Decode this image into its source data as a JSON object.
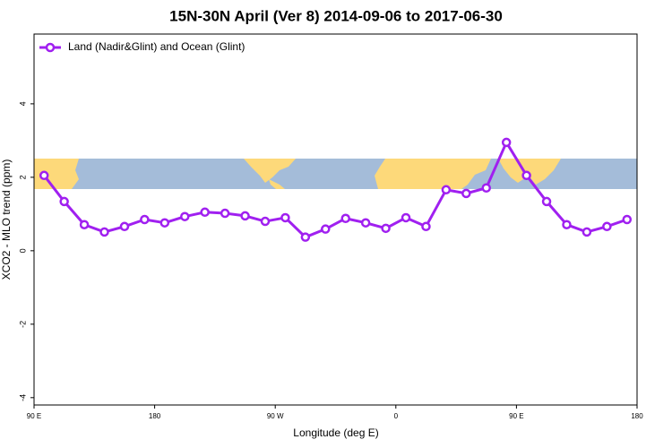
{
  "chart_data": {
    "type": "line",
    "title": "15N-30N April (Ver 8)   2014-09-06 to 2017-06-30",
    "x_label": "Longitude (deg E)",
    "y_label": "XCO2 - MLO trend (ppm)",
    "x": [
      97.5,
      112.5,
      127.5,
      142.5,
      157.5,
      172.5,
      187.5,
      202.5,
      217.5,
      232.5,
      247.5,
      262.5,
      277.5,
      292.5,
      307.5,
      322.5,
      337.5,
      352.5,
      367.5,
      382.5,
      397.5,
      412.5,
      427.5,
      442.5,
      457.5,
      472.5,
      487.5,
      502.5,
      517.5,
      532.5
    ],
    "series": [
      {
        "name": "Land (Nadir&Glint) and Ocean (Glint)",
        "color": "#a020f0",
        "values": [
          2.05,
          1.34,
          0.71,
          0.51,
          0.66,
          0.85,
          0.76,
          0.93,
          1.05,
          1.02,
          0.95,
          0.8,
          0.9,
          0.37,
          0.59,
          0.88,
          0.76,
          0.61,
          0.9,
          0.66,
          1.66,
          1.56,
          1.71,
          2.95,
          2.05,
          1.34,
          0.71,
          0.51,
          0.66,
          0.85
        ]
      }
    ],
    "xlim": [
      90,
      540
    ],
    "xticks": [
      {
        "value": 90,
        "label": "90 E"
      },
      180,
      {
        "value": 270,
        "label": "90 W"
      },
      {
        "value": 360,
        "label": "0"
      },
      {
        "value": 450,
        "label": "90 E"
      },
      {
        "value": 540,
        "label": "180"
      }
    ],
    "ylim": [
      -4.2,
      5.9
    ],
    "yticks": [
      -4,
      -2,
      0,
      2,
      4
    ],
    "legend": "top-left"
  }
}
